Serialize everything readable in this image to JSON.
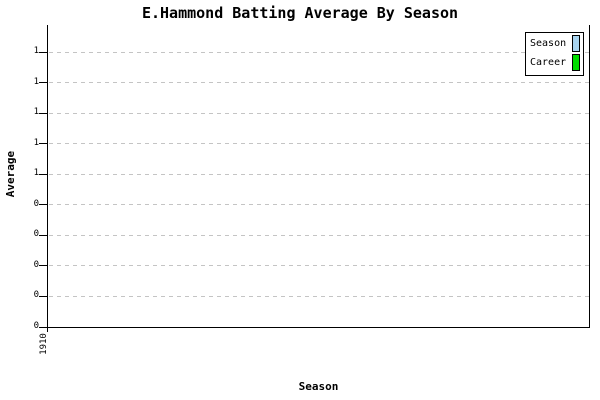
{
  "title": "E.Hammond Batting Average By Season",
  "axes": {
    "x_label": "Season",
    "y_label": "Average",
    "x_tick_labels": [
      "1910"
    ],
    "y_tick_labels_top_to_bottom": [
      "1",
      "1",
      "1",
      "1",
      "1",
      "0",
      "0",
      "0",
      "0",
      "0"
    ]
  },
  "legend": {
    "items": [
      {
        "label": "Season",
        "color": "#A8D4F0"
      },
      {
        "label": "Career",
        "color": "#00DD00"
      }
    ]
  },
  "colors": {
    "background": "#FFFFFF",
    "axis": "#000000",
    "gridline": "#C4C4C4",
    "season_swatch": "#A8D4F0",
    "career_swatch": "#00DD00"
  },
  "chart_data": {
    "type": "bar",
    "title": "E.Hammond Batting Average By Season",
    "xlabel": "Season",
    "ylabel": "Average",
    "categories": [
      "1910"
    ],
    "series": [
      {
        "name": "Season",
        "color": "#A8D4F0",
        "values": [
          0
        ]
      },
      {
        "name": "Career",
        "color": "#00DD00",
        "values": [
          0
        ]
      }
    ],
    "ylim": [
      0,
      1
    ],
    "y_tick_count": 10,
    "y_tick_display_bottom_to_top": [
      "0",
      "0",
      "0",
      "0",
      "0",
      "1",
      "1",
      "1",
      "1",
      "1"
    ],
    "grid": "horizontal dashed",
    "legend_position": "top-right",
    "plot_note": "plot area is empty - no visible bars (zero-height data)"
  }
}
